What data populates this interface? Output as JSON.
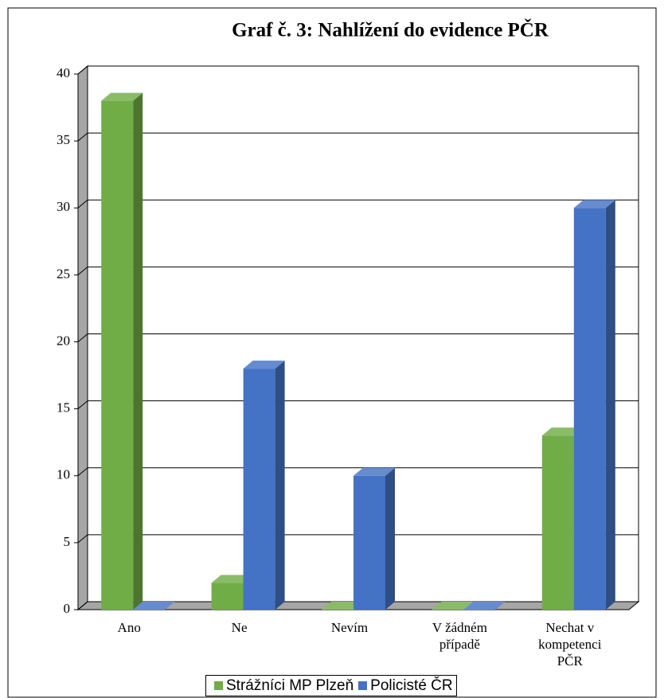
{
  "chart_data": {
    "type": "bar3d",
    "title": "Graf č. 3: Nahlížení do evidence PČR",
    "categories": [
      "Ano",
      "Ne",
      "Nevím",
      "V žádném případě",
      "Nechat v kompetenci PČR"
    ],
    "series": [
      {
        "name": "Strážníci MP Plzeň",
        "color": "#70ad47",
        "values": [
          38,
          2,
          0,
          0,
          13
        ]
      },
      {
        "name": "Policisté ČR",
        "color": "#4472c4",
        "values": [
          0,
          18,
          10,
          0,
          30
        ]
      }
    ],
    "ylim": [
      0,
      40
    ],
    "yticks": [
      0,
      5,
      10,
      15,
      20,
      25,
      30,
      35,
      40
    ],
    "grid": true,
    "legend": "bottom"
  }
}
